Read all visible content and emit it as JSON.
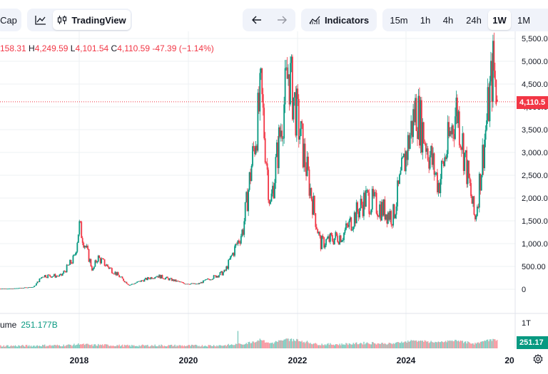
{
  "toolbar": {
    "market_cap_label": "Cap",
    "line_icon": "line-chart-icon",
    "tradingview_label": "TradingView",
    "candle_icon": "candlestick-icon",
    "undo_icon": "arrow-left-icon",
    "redo_icon": "arrow-right-icon",
    "indicators_label": "Indicators",
    "indicators_icon": "indicators-icon",
    "timeframes": [
      "15m",
      "1h",
      "4h",
      "24h",
      "1W",
      "1M"
    ],
    "active_timeframe": "1W"
  },
  "ohlc": {
    "open_partial": "158.31",
    "high_key": "H",
    "high": "4,249.59",
    "low_key": "L",
    "low": "4,101.54",
    "close_key": "C",
    "close": "4,110.59",
    "change": "-47.39 (−1.14%)"
  },
  "price_axis": {
    "ticks": [
      "5,500.00",
      "5,000.00",
      "4,500.00",
      "4,000.00",
      "3,500.00",
      "3,000.00",
      "2,500.00",
      "2,000.00",
      "1,500.00",
      "1,000.00",
      "500.00",
      "0"
    ],
    "current_price_label": "4,110.5"
  },
  "time_axis": {
    "labels": [
      "2018",
      "2020",
      "2022",
      "2024",
      "20"
    ]
  },
  "volume": {
    "label_partial": "ume",
    "value": "251.177B",
    "scale_label": "1T",
    "tag_value": "251.17"
  },
  "colors": {
    "up": "#089981",
    "down": "#f23645",
    "grid": "#eef0f3",
    "price_line": "#f23645"
  },
  "chart_data": {
    "type": "candlestick",
    "interval": "1W",
    "y_unit": "USD",
    "ylim": [
      0,
      5500
    ],
    "x_labels": [
      "2018",
      "2020",
      "2022",
      "2024"
    ],
    "last_close": 4110.59,
    "anchors": [
      {
        "date": "2016-10",
        "price": 12
      },
      {
        "date": "2017-03",
        "price": 50
      },
      {
        "date": "2017-05",
        "price": 300
      },
      {
        "date": "2017-09",
        "price": 290
      },
      {
        "date": "2017-12",
        "price": 700
      },
      {
        "date": "2018-01",
        "price": 1400
      },
      {
        "date": "2018-04",
        "price": 400
      },
      {
        "date": "2018-05",
        "price": 700
      },
      {
        "date": "2018-12",
        "price": 90
      },
      {
        "date": "2019-06",
        "price": 300
      },
      {
        "date": "2019-12",
        "price": 130
      },
      {
        "date": "2020-03",
        "price": 110
      },
      {
        "date": "2020-09",
        "price": 380
      },
      {
        "date": "2021-01",
        "price": 1300
      },
      {
        "date": "2021-05",
        "price": 4300
      },
      {
        "date": "2021-07",
        "price": 1800
      },
      {
        "date": "2021-11",
        "price": 4800
      },
      {
        "date": "2022-06",
        "price": 1000
      },
      {
        "date": "2022-11",
        "price": 1200
      },
      {
        "date": "2023-04",
        "price": 2000
      },
      {
        "date": "2023-10",
        "price": 1600
      },
      {
        "date": "2024-03",
        "price": 4000
      },
      {
        "date": "2024-08",
        "price": 2300
      },
      {
        "date": "2024-12",
        "price": 4000
      },
      {
        "date": "2025-04",
        "price": 1500
      },
      {
        "date": "2025-08",
        "price": 4900
      },
      {
        "date": "2025-09",
        "price": 4110
      }
    ],
    "volume_scale": "1T",
    "last_volume": "251.177B"
  }
}
